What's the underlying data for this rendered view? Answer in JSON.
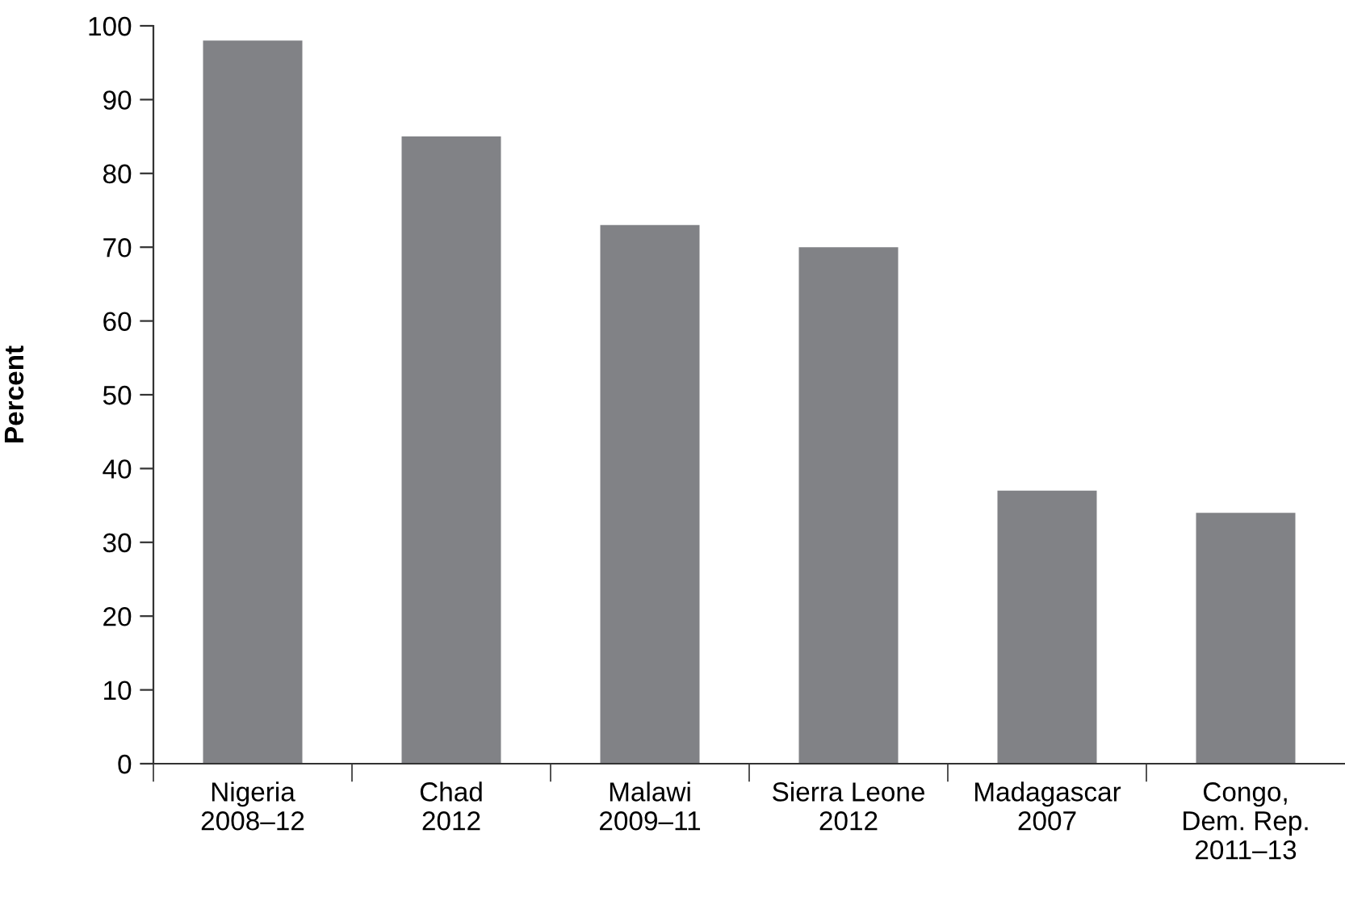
{
  "chart_data": {
    "type": "bar",
    "ylabel": "Percent",
    "categories": [
      "Nigeria\n2008–12",
      "Chad\n2012",
      "Malawi\n2009–11",
      "Sierra Leone\n2012",
      "Madagascar\n2007",
      "Congo,\nDem. Rep.\n2011–13"
    ],
    "values": [
      98,
      85,
      73,
      70,
      37,
      34
    ],
    "color": "#818286",
    "ylim": [
      0,
      100
    ],
    "yticks": [
      0,
      10,
      20,
      30,
      40,
      50,
      60,
      70,
      80,
      90,
      100
    ],
    "grid": false
  }
}
